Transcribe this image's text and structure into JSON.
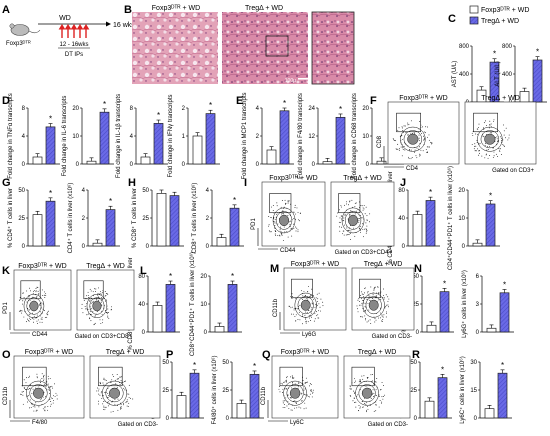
{
  "colors": {
    "control": "#ffffff",
    "treg": "#6a6ae6",
    "stroke": "#222222",
    "histo": "#d4869e"
  },
  "legend": {
    "control": "Foxp3ᴰᵀᴿ + WD",
    "treg": "TregΔ + WD"
  },
  "panelA": {
    "letter": "A",
    "mouse_label": "Foxp3ᴰᵀᴿ",
    "diet": "WD",
    "duration": "16 wks",
    "window": "12 - 16wks",
    "treatment": "DT IPs"
  },
  "panelB": {
    "letter": "B",
    "titles": [
      "Foxp3ᴰᵀᴿ + WD",
      "TregΔ + WD"
    ],
    "scalebar": "100μ"
  },
  "flow_titles": {
    "ctrl": "Foxp3ᴰᵀᴿ + WD",
    "treg": "Tregᐃ + WD"
  },
  "flow_panels": [
    {
      "id": "F",
      "ylab": "CD8",
      "xlab": "CD4",
      "gate": "Gated on CD3+"
    },
    {
      "id": "I",
      "ylab": "PD1",
      "xlab": "CD44",
      "gate": "Gated on CD3+CD4+"
    },
    {
      "id": "K",
      "ylab": "PD1",
      "xlab": "CD44",
      "gate": "Gated on CD3+CD8+"
    },
    {
      "id": "M",
      "ylab": "CD11b",
      "xlab": "Ly6G",
      "gate": "Gated on CD3-"
    },
    {
      "id": "O",
      "ylab": "CD11b",
      "xlab": "F4/80",
      "gate": "Gated on CD3-"
    },
    {
      "id": "Q",
      "ylab": "CD11b",
      "xlab": "Ly6C",
      "gate": "Gated on CD3-"
    }
  ],
  "chart_data": [
    {
      "panel": "C",
      "type": "bar",
      "ylabel": "AST (U/L)",
      "yticks": [
        0,
        400,
        800
      ],
      "ylim": [
        0,
        800
      ],
      "categories": [
        "Foxp3ᴰᵀᴿ + WD",
        "TregΔ + WD"
      ],
      "values": [
        170,
        570
      ],
      "significance": "*"
    },
    {
      "panel": "C",
      "type": "bar",
      "ylabel": "ALT (U/L)",
      "yticks": [
        0,
        400,
        800
      ],
      "ylim": [
        0,
        800
      ],
      "categories": [
        "Foxp3ᴰᵀᴿ + WD",
        "TregΔ + WD"
      ],
      "values": [
        150,
        600
      ],
      "significance": "*"
    },
    {
      "panel": "D",
      "type": "bar",
      "ylabel": "Fold change in TNFα transcripts",
      "yticks": [
        0,
        4,
        8
      ],
      "ylim": [
        0,
        8
      ],
      "categories": [
        "Foxp3ᴰᵀᴿ + WD",
        "TregΔ + WD"
      ],
      "values": [
        1,
        5.3
      ],
      "significance": "*"
    },
    {
      "panel": "D",
      "type": "bar",
      "ylabel": "Fold change in IL-6 transcripts",
      "yticks": [
        0,
        10,
        20
      ],
      "ylim": [
        0,
        20
      ],
      "categories": [
        "Foxp3ᴰᵀᴿ + WD",
        "TregΔ + WD"
      ],
      "values": [
        1,
        18.5
      ],
      "significance": "*"
    },
    {
      "panel": "D",
      "type": "bar",
      "ylabel": "Fold change in IL-1β transcripts",
      "yticks": [
        0,
        4,
        8
      ],
      "ylim": [
        0,
        8
      ],
      "categories": [
        "Foxp3ᴰᵀᴿ + WD",
        "TregΔ + WD"
      ],
      "values": [
        1,
        5.8
      ],
      "significance": "*"
    },
    {
      "panel": "D",
      "type": "bar",
      "ylabel": "Fold change in IFNγ transcripts",
      "yticks": [
        0,
        1,
        2
      ],
      "ylim": [
        0,
        2
      ],
      "categories": [
        "Foxp3ᴰᵀᴿ + WD",
        "TregΔ + WD"
      ],
      "values": [
        1,
        1.8
      ],
      "significance": "*"
    },
    {
      "panel": "E",
      "type": "bar",
      "ylabel": "Fold change in MCP1 transcripts",
      "yticks": [
        0,
        2,
        4
      ],
      "ylim": [
        0,
        4
      ],
      "categories": [
        "Foxp3ᴰᵀᴿ + WD",
        "TregΔ + WD"
      ],
      "values": [
        1,
        3.8
      ],
      "significance": "*"
    },
    {
      "panel": "E",
      "type": "bar",
      "ylabel": "Fold change in F4/80 transcripts",
      "yticks": [
        0,
        12,
        24
      ],
      "ylim": [
        0,
        24
      ],
      "categories": [
        "Foxp3ᴰᵀᴿ + WD",
        "TregΔ + WD"
      ],
      "values": [
        1,
        20
      ],
      "significance": "*"
    },
    {
      "panel": "E",
      "type": "bar",
      "ylabel": "Fold change in CD68 transcripts",
      "yticks": [
        0,
        10,
        20
      ],
      "ylim": [
        0,
        20
      ],
      "categories": [
        "Foxp3ᴰᵀᴿ + WD",
        "TregΔ + WD"
      ],
      "values": [
        1,
        17
      ],
      "significance": "*"
    },
    {
      "panel": "G",
      "type": "bar",
      "ylabel": "% CD4⁺ T cells in liver",
      "yticks": [
        0,
        25,
        50
      ],
      "ylim": [
        0,
        50
      ],
      "categories": [
        "Foxp3ᴰᵀᴿ + WD",
        "TregΔ + WD"
      ],
      "values": [
        28,
        40
      ],
      "significance": "*"
    },
    {
      "panel": "G",
      "type": "bar",
      "ylabel": "CD4⁺ T cells in liver (x10⁶)",
      "yticks": [
        0,
        2,
        4
      ],
      "ylim": [
        0,
        4
      ],
      "categories": [
        "Foxp3ᴰᵀᴿ + WD",
        "TregΔ + WD"
      ],
      "values": [
        0.2,
        2.6
      ],
      "significance": "*"
    },
    {
      "panel": "H",
      "type": "bar",
      "ylabel": "% CD8⁺ T cells in liver",
      "yticks": [
        0,
        25,
        50
      ],
      "ylim": [
        0,
        50
      ],
      "categories": [
        "Foxp3ᴰᵀᴿ + WD",
        "TregΔ + WD"
      ],
      "values": [
        47,
        45
      ],
      "significance": ""
    },
    {
      "panel": "H",
      "type": "bar",
      "ylabel": "CD8⁺ T cells in liver (x10⁶)",
      "yticks": [
        0,
        2,
        4
      ],
      "ylim": [
        0,
        4
      ],
      "categories": [
        "Foxp3ᴰᵀᴿ + WD",
        "TregΔ + WD"
      ],
      "values": [
        0.6,
        2.7
      ],
      "significance": "*"
    },
    {
      "panel": "J",
      "type": "bar",
      "ylabel": "% CD4⁺CD44⁺PD1⁺ T cells in liver",
      "yticks": [
        0,
        40,
        80
      ],
      "ylim": [
        0,
        80
      ],
      "categories": [
        "Foxp3ᴰᵀᴿ + WD",
        "TregΔ + WD"
      ],
      "values": [
        45,
        65
      ],
      "significance": "*"
    },
    {
      "panel": "J",
      "type": "bar",
      "ylabel": "CD4⁺CD44⁺PD1⁺ T cells in liver (x10⁶)",
      "yticks": [
        0,
        10,
        20
      ],
      "ylim": [
        0,
        20
      ],
      "categories": [
        "Foxp3ᴰᵀᴿ + WD",
        "TregΔ + WD"
      ],
      "values": [
        1,
        15
      ],
      "significance": "*"
    },
    {
      "panel": "L",
      "type": "bar",
      "ylabel": "% CD8⁺CD44⁺PD1⁺ T cells in liver",
      "yticks": [
        0,
        40,
        80
      ],
      "ylim": [
        0,
        80
      ],
      "categories": [
        "Foxp3ᴰᵀᴿ + WD",
        "TregΔ + WD"
      ],
      "values": [
        38,
        68
      ],
      "significance": "*"
    },
    {
      "panel": "L",
      "type": "bar",
      "ylabel": "CD8⁺CD44⁺PD1⁺ T cells in liver (x10⁶)",
      "yticks": [
        0,
        10,
        20
      ],
      "ylim": [
        0,
        20
      ],
      "categories": [
        "Foxp3ᴰᵀᴿ + WD",
        "TregΔ + WD"
      ],
      "values": [
        2,
        17
      ],
      "significance": "*"
    },
    {
      "panel": "N",
      "type": "bar",
      "ylabel": "% Ly6G⁺ cells in liver",
      "yticks": [
        0,
        25,
        50
      ],
      "ylim": [
        0,
        50
      ],
      "categories": [
        "Foxp3ᴰᵀᴿ + WD",
        "TregΔ + WD"
      ],
      "values": [
        6,
        36
      ],
      "significance": "*"
    },
    {
      "panel": "N",
      "type": "bar",
      "ylabel": "Ly6G⁺ cells in liver (x10⁶)",
      "yticks": [
        0,
        3,
        6
      ],
      "ylim": [
        0,
        6
      ],
      "categories": [
        "Foxp3ᴰᵀᴿ + WD",
        "TregΔ + WD"
      ],
      "values": [
        0.4,
        4.2
      ],
      "significance": "*"
    },
    {
      "panel": "P",
      "type": "bar",
      "ylabel": "% F4/80⁺ cells in liver",
      "yticks": [
        0,
        25,
        50
      ],
      "ylim": [
        0,
        50
      ],
      "categories": [
        "Foxp3ᴰᵀᴿ + WD",
        "TregΔ + WD"
      ],
      "values": [
        20,
        40
      ],
      "significance": "*"
    },
    {
      "panel": "P",
      "type": "bar",
      "ylabel": "F4/80⁺ cells in liver (x10⁶)",
      "yticks": [
        0,
        25,
        50
      ],
      "ylim": [
        0,
        50
      ],
      "categories": [
        "Foxp3ᴰᵀᴿ + WD",
        "TregΔ + WD"
      ],
      "values": [
        13,
        39
      ],
      "significance": "*"
    },
    {
      "panel": "R",
      "type": "bar",
      "ylabel": "% Ly6C⁺ cells in liver",
      "yticks": [
        0,
        25,
        50
      ],
      "ylim": [
        0,
        50
      ],
      "categories": [
        "Foxp3ᴰᵀᴿ + WD",
        "TregΔ + WD"
      ],
      "values": [
        15,
        36
      ],
      "significance": "*"
    },
    {
      "panel": "R",
      "type": "bar",
      "ylabel": "Ly6C⁺ cells in liver (x10⁶)",
      "yticks": [
        0,
        15,
        30
      ],
      "ylim": [
        0,
        30
      ],
      "categories": [
        "Foxp3ᴰᵀᴿ + WD",
        "TregΔ + WD"
      ],
      "values": [
        5,
        24
      ],
      "significance": "*"
    }
  ]
}
